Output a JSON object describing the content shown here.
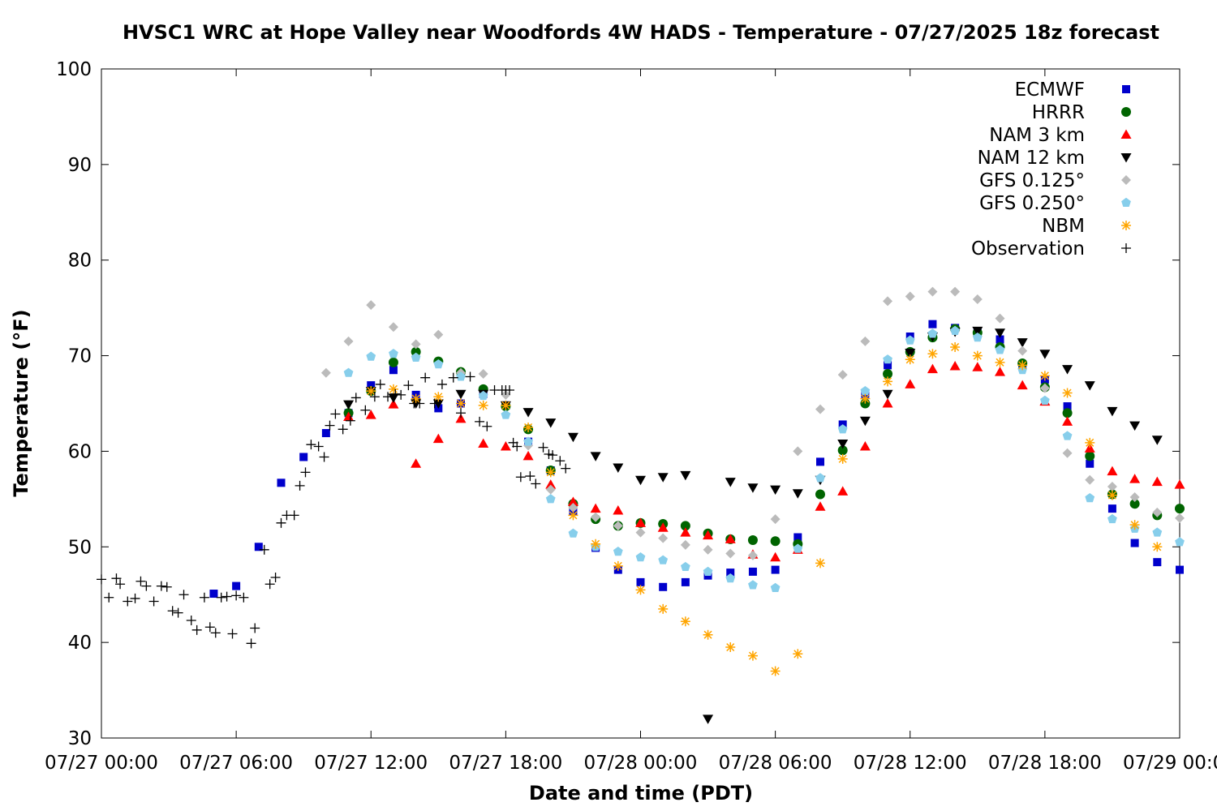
{
  "chart_data": {
    "type": "scatter",
    "title": "HVSC1 WRC at Hope Valley near Woodfords 4W HADS - Temperature - 07/27/2025 18z forecast",
    "xlabel": "Date and time (PDT)",
    "ylabel": "Temperature (°F)",
    "xlim": [
      "07/27 00:00",
      "07/29 00:00"
    ],
    "ylim": [
      30,
      100
    ],
    "x_ticks": [
      "07/27 00:00",
      "07/27 06:00",
      "07/27 12:00",
      "07/27 18:00",
      "07/28 00:00",
      "07/28 06:00",
      "07/28 12:00",
      "07/28 18:00",
      "07/29 00:00"
    ],
    "y_ticks": [
      30,
      40,
      50,
      60,
      70,
      80,
      90,
      100
    ],
    "grid": false,
    "legend_position": "top-right",
    "series": [
      {
        "name": "ECMWF",
        "marker": "square",
        "color": "#0000cc",
        "x": [
          "07/27 05:00",
          "07/27 06:00",
          "07/27 07:00",
          "07/27 08:00",
          "07/27 09:00",
          "07/27 10:00",
          "07/27 11:00",
          "07/27 12:00",
          "07/27 13:00",
          "07/27 14:00",
          "07/27 15:00",
          "07/27 16:00",
          "07/27 17:00",
          "07/27 18:00",
          "07/27 19:00",
          "07/27 20:00",
          "07/27 21:00",
          "07/27 22:00",
          "07/27 23:00",
          "07/28 00:00",
          "07/28 01:00",
          "07/28 02:00",
          "07/28 03:00",
          "07/28 04:00",
          "07/28 05:00",
          "07/28 06:00",
          "07/28 07:00",
          "07/28 08:00",
          "07/28 09:00",
          "07/28 10:00",
          "07/28 11:00",
          "07/28 12:00",
          "07/28 13:00",
          "07/28 14:00",
          "07/28 15:00",
          "07/28 16:00",
          "07/28 17:00",
          "07/28 18:00",
          "07/28 19:00",
          "07/28 20:00",
          "07/28 21:00",
          "07/28 22:00",
          "07/28 23:00",
          "07/29 00:00"
        ],
        "y": [
          45.1,
          45.9,
          50.0,
          56.7,
          59.4,
          61.9,
          64.0,
          66.9,
          68.5,
          65.9,
          64.5,
          65.0,
          66.0,
          64.8,
          61.0,
          58.0,
          53.7,
          49.9,
          47.6,
          46.3,
          45.8,
          46.3,
          47.0,
          47.3,
          47.4,
          47.6,
          51.0,
          58.9,
          62.8,
          66.0,
          69.0,
          72.0,
          73.3,
          72.9,
          72.5,
          71.7,
          69.0,
          67.5,
          64.7,
          58.7,
          54.0,
          50.4,
          48.4,
          47.6
        ]
      },
      {
        "name": "HRRR",
        "marker": "circle",
        "color": "#006400",
        "x": [
          "07/27 11:00",
          "07/27 12:00",
          "07/27 13:00",
          "07/27 14:00",
          "07/27 15:00",
          "07/27 16:00",
          "07/27 17:00",
          "07/27 18:00",
          "07/27 19:00",
          "07/27 20:00",
          "07/27 21:00",
          "07/27 22:00",
          "07/27 23:00",
          "07/28 00:00",
          "07/28 01:00",
          "07/28 02:00",
          "07/28 03:00",
          "07/28 04:00",
          "07/28 05:00",
          "07/28 06:00",
          "07/28 07:00",
          "07/28 08:00",
          "07/28 09:00",
          "07/28 10:00",
          "07/28 11:00",
          "07/28 12:00",
          "07/28 13:00",
          "07/28 14:00",
          "07/28 15:00",
          "07/28 16:00",
          "07/28 17:00",
          "07/28 18:00",
          "07/28 19:00",
          "07/28 20:00",
          "07/28 21:00",
          "07/28 22:00",
          "07/28 23:00",
          "07/29 00:00"
        ],
        "y": [
          64.0,
          66.3,
          69.3,
          70.4,
          69.4,
          68.3,
          66.5,
          64.7,
          62.3,
          58.0,
          54.5,
          52.9,
          52.2,
          52.5,
          52.4,
          52.2,
          51.4,
          50.8,
          50.7,
          50.6,
          50.3,
          55.5,
          60.1,
          65.0,
          68.1,
          70.4,
          71.9,
          72.8,
          72.4,
          70.9,
          69.2,
          66.7,
          64.0,
          59.5,
          55.5,
          54.5,
          53.3,
          54.0
        ]
      },
      {
        "name": "NAM 3 km",
        "marker": "triangle-up",
        "color": "#ff0000",
        "x": [
          "07/27 11:00",
          "07/27 12:00",
          "07/27 13:00",
          "07/27 14:00",
          "07/27 15:00",
          "07/27 16:00",
          "07/27 17:00",
          "07/27 18:00",
          "07/27 19:00",
          "07/27 20:00",
          "07/27 21:00",
          "07/27 22:00",
          "07/27 23:00",
          "07/28 00:00",
          "07/28 01:00",
          "07/28 02:00",
          "07/28 03:00",
          "07/28 04:00",
          "07/28 05:00",
          "07/28 06:00",
          "07/28 07:00",
          "07/28 08:00",
          "07/28 09:00",
          "07/28 10:00",
          "07/28 11:00",
          "07/28 12:00",
          "07/28 13:00",
          "07/28 14:00",
          "07/28 15:00",
          "07/28 16:00",
          "07/28 17:00",
          "07/28 18:00",
          "07/28 19:00",
          "07/28 20:00",
          "07/28 21:00",
          "07/28 22:00",
          "07/28 23:00",
          "07/29 00:00"
        ],
        "y": [
          63.6,
          63.8,
          64.9,
          58.7,
          61.3,
          63.4,
          60.8,
          60.5,
          59.5,
          56.5,
          54.7,
          54.0,
          53.8,
          52.5,
          52.0,
          51.5,
          51.2,
          50.8,
          49.2,
          48.9,
          49.7,
          54.2,
          55.8,
          60.5,
          65.0,
          67.0,
          68.6,
          68.9,
          68.8,
          68.3,
          66.9,
          65.2,
          63.1,
          60.3,
          57.9,
          57.1,
          56.8,
          56.5
        ]
      },
      {
        "name": "NAM 12 km",
        "marker": "triangle-down",
        "color": "#000000",
        "x": [
          "07/27 11:00",
          "07/27 12:00",
          "07/27 13:00",
          "07/27 14:00",
          "07/27 15:00",
          "07/27 16:00",
          "07/27 17:00",
          "07/27 18:00",
          "07/27 19:00",
          "07/27 20:00",
          "07/27 21:00",
          "07/27 22:00",
          "07/27 23:00",
          "07/28 00:00",
          "07/28 01:00",
          "07/28 02:00",
          "07/28 03:00",
          "07/28 04:00",
          "07/28 05:00",
          "07/28 06:00",
          "07/28 07:00",
          "07/28 08:00",
          "07/28 09:00",
          "07/28 10:00",
          "07/28 11:00",
          "07/28 12:00",
          "07/28 13:00",
          "07/28 14:00",
          "07/28 15:00",
          "07/28 16:00",
          "07/28 17:00",
          "07/28 18:00",
          "07/28 19:00",
          "07/28 20:00",
          "07/28 21:00",
          "07/28 22:00",
          "07/28 23:00"
        ],
        "y": [
          64.9,
          66.3,
          65.6,
          65.0,
          65.0,
          66.0,
          66.0,
          64.8,
          64.1,
          63.0,
          61.5,
          59.5,
          58.3,
          57.0,
          57.3,
          57.5,
          32.0,
          56.8,
          56.2,
          56.0,
          55.6,
          57.0,
          60.8,
          63.2,
          66.0,
          70.3,
          72.0,
          72.5,
          72.6,
          72.4,
          71.4,
          70.2,
          68.6,
          66.9,
          64.2,
          62.7,
          61.2
        ]
      },
      {
        "name": "GFS 0.125°",
        "marker": "diamond",
        "color": "#bbbbbb",
        "x": [
          "07/27 10:00",
          "07/27 11:00",
          "07/27 12:00",
          "07/27 13:00",
          "07/27 14:00",
          "07/27 15:00",
          "07/27 16:00",
          "07/27 17:00",
          "07/27 18:00",
          "07/27 19:00",
          "07/27 20:00",
          "07/27 21:00",
          "07/27 22:00",
          "07/27 23:00",
          "07/28 00:00",
          "07/28 01:00",
          "07/28 02:00",
          "07/28 03:00",
          "07/28 04:00",
          "07/28 05:00",
          "07/28 06:00",
          "07/28 07:00",
          "07/28 08:00",
          "07/28 09:00",
          "07/28 10:00",
          "07/28 11:00",
          "07/28 12:00",
          "07/28 13:00",
          "07/28 14:00",
          "07/28 15:00",
          "07/28 16:00",
          "07/28 17:00",
          "07/28 18:00",
          "07/28 19:00",
          "07/28 20:00",
          "07/28 21:00",
          "07/28 22:00",
          "07/28 23:00",
          "07/29 00:00"
        ],
        "y": [
          68.2,
          71.5,
          75.3,
          73.0,
          71.2,
          72.2,
          68.2,
          68.1,
          65.9,
          60.6,
          56.0,
          54.1,
          53.1,
          52.2,
          51.5,
          50.9,
          50.2,
          49.7,
          49.3,
          49.1,
          52.9,
          60.0,
          64.4,
          68.0,
          71.5,
          75.7,
          76.2,
          76.7,
          76.7,
          75.9,
          73.9,
          70.5,
          66.6,
          59.8,
          57.0,
          56.3,
          55.2,
          53.6,
          53.0
        ]
      },
      {
        "name": "GFS 0.250°",
        "marker": "pentagon",
        "color": "#87ceeb",
        "x": [
          "07/27 11:00",
          "07/27 12:00",
          "07/27 13:00",
          "07/27 14:00",
          "07/27 15:00",
          "07/27 16:00",
          "07/27 17:00",
          "07/27 18:00",
          "07/27 19:00",
          "07/27 20:00",
          "07/27 21:00",
          "07/27 22:00",
          "07/27 23:00",
          "07/28 00:00",
          "07/28 01:00",
          "07/28 02:00",
          "07/28 03:00",
          "07/28 04:00",
          "07/28 05:00",
          "07/28 06:00",
          "07/28 07:00",
          "07/28 08:00",
          "07/28 09:00",
          "07/28 10:00",
          "07/28 11:00",
          "07/28 12:00",
          "07/28 13:00",
          "07/28 14:00",
          "07/28 15:00",
          "07/28 16:00",
          "07/28 17:00",
          "07/28 18:00",
          "07/28 19:00",
          "07/28 20:00",
          "07/28 21:00",
          "07/28 22:00",
          "07/28 23:00",
          "07/29 00:00"
        ],
        "y": [
          68.2,
          69.9,
          70.2,
          69.8,
          69.1,
          67.8,
          65.8,
          63.8,
          61.0,
          55.0,
          51.4,
          50.0,
          49.5,
          48.9,
          48.6,
          47.9,
          47.4,
          46.7,
          46.0,
          45.7,
          49.8,
          57.2,
          62.3,
          66.3,
          69.6,
          71.6,
          72.3,
          72.6,
          71.9,
          70.6,
          68.5,
          65.3,
          61.6,
          55.1,
          52.9,
          51.9,
          51.5,
          50.5
        ]
      },
      {
        "name": "NBM",
        "marker": "asterisk",
        "color": "#ffa500",
        "x": [
          "07/27 12:00",
          "07/27 13:00",
          "07/27 14:00",
          "07/27 15:00",
          "07/27 16:00",
          "07/27 17:00",
          "07/27 18:00",
          "07/27 19:00",
          "07/27 20:00",
          "07/27 21:00",
          "07/27 22:00",
          "07/27 23:00",
          "07/28 00:00",
          "07/28 01:00",
          "07/28 02:00",
          "07/28 03:00",
          "07/28 04:00",
          "07/28 05:00",
          "07/28 06:00",
          "07/28 07:00",
          "07/28 08:00",
          "07/28 09:00",
          "07/28 10:00",
          "07/28 11:00",
          "07/28 12:00",
          "07/28 13:00",
          "07/28 14:00",
          "07/28 15:00",
          "07/28 16:00",
          "07/28 17:00",
          "07/28 18:00",
          "07/28 19:00",
          "07/28 20:00",
          "07/28 21:00",
          "07/28 22:00",
          "07/28 23:00"
        ],
        "y": [
          66.3,
          66.5,
          65.5,
          65.7,
          65.0,
          64.8,
          64.8,
          62.5,
          57.8,
          53.3,
          50.3,
          48.0,
          45.5,
          43.5,
          42.2,
          40.8,
          39.5,
          38.6,
          37.0,
          38.8,
          48.3,
          59.2,
          65.5,
          67.3,
          69.6,
          70.2,
          70.9,
          70.0,
          69.3,
          69.0,
          67.9,
          66.1,
          60.9,
          55.4,
          52.3,
          50.0
        ]
      },
      {
        "name": "Observation",
        "marker": "plus",
        "color": "#000000",
        "x": [
          "07/27 00:00",
          "07/27 00:20",
          "07/27 00:40",
          "07/27 00:50",
          "07/27 01:10",
          "07/27 01:30",
          "07/27 01:45",
          "07/27 02:00",
          "07/27 02:20",
          "07/27 02:40",
          "07/27 02:55",
          "07/27 03:10",
          "07/27 03:25",
          "07/27 03:40",
          "07/27 04:00",
          "07/27 04:15",
          "07/27 04:35",
          "07/27 04:50",
          "07/27 05:05",
          "07/27 05:20",
          "07/27 05:35",
          "07/27 05:50",
          "07/27 06:00",
          "07/27 06:20",
          "07/27 06:40",
          "07/27 06:50",
          "07/27 07:15",
          "07/27 07:30",
          "07/27 07:45",
          "07/27 08:00",
          "07/27 08:15",
          "07/27 08:35",
          "07/27 08:50",
          "07/27 09:05",
          "07/27 09:20",
          "07/27 09:40",
          "07/27 09:55",
          "07/27 10:10",
          "07/27 10:25",
          "07/27 10:45",
          "07/27 11:05",
          "07/27 11:20",
          "07/27 11:45",
          "07/27 12:10",
          "07/27 12:25",
          "07/27 12:45",
          "07/27 13:05",
          "07/27 13:20",
          "07/27 13:40",
          "07/27 13:55",
          "07/27 14:10",
          "07/27 14:25",
          "07/27 14:50",
          "07/27 15:10",
          "07/27 15:40",
          "07/27 16:00",
          "07/27 16:25",
          "07/27 16:50",
          "07/27 17:10",
          "07/27 17:30",
          "07/27 17:50",
          "07/27 18:00",
          "07/27 18:10",
          "07/27 18:20",
          "07/27 18:30",
          "07/27 18:40",
          "07/27 19:05",
          "07/27 19:20",
          "07/27 19:40",
          "07/27 19:55",
          "07/27 20:05",
          "07/27 20:25",
          "07/27 20:40"
        ],
        "y": [
          46.6,
          44.7,
          46.7,
          46.1,
          44.3,
          44.6,
          46.4,
          45.9,
          44.3,
          45.9,
          45.8,
          43.3,
          43.1,
          45.0,
          42.3,
          41.3,
          44.7,
          41.6,
          41.0,
          44.7,
          44.8,
          40.9,
          44.9,
          44.7,
          39.9,
          41.5,
          49.7,
          46.1,
          46.8,
          52.5,
          53.3,
          53.3,
          56.4,
          57.8,
          60.7,
          60.5,
          59.4,
          62.7,
          63.9,
          62.3,
          63.2,
          65.6,
          64.3,
          65.7,
          67.0,
          65.7,
          66.0,
          65.9,
          66.9,
          65.0,
          65.0,
          67.7,
          65.0,
          67.0,
          67.7,
          64.0,
          67.8,
          63.1,
          62.6,
          66.4,
          66.4,
          66.4,
          66.4,
          60.9,
          60.5,
          57.3,
          57.4,
          56.6,
          60.4,
          59.7,
          59.6,
          59.0,
          58.2
        ]
      }
    ]
  }
}
